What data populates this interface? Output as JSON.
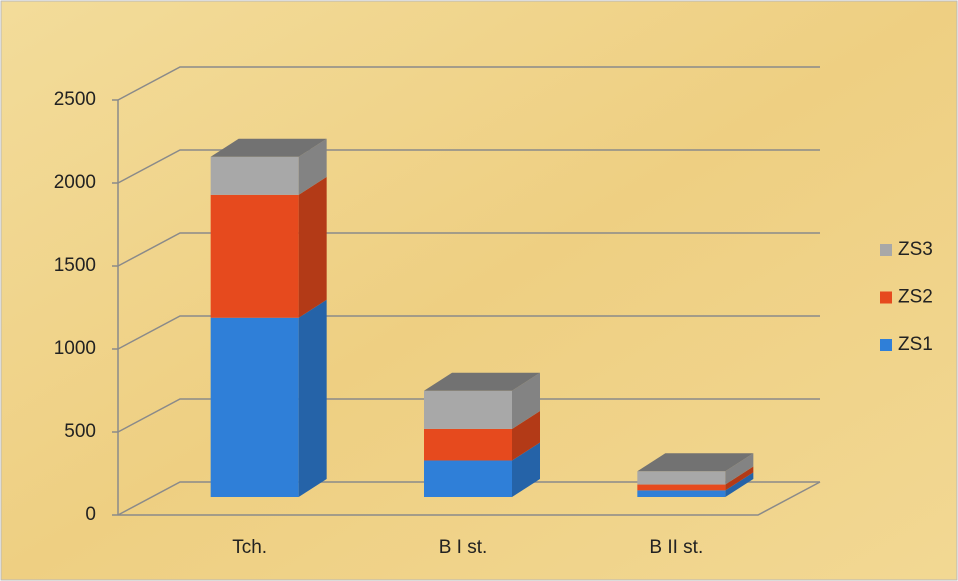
{
  "chart_data": {
    "type": "bar3d_stacked",
    "categories": [
      "Tch.",
      "B I st.",
      "B II st."
    ],
    "series": [
      {
        "name": "ZS1",
        "color": "#2f7fd8",
        "values": [
          1080,
          220,
          40
        ]
      },
      {
        "name": "ZS2",
        "color": "#e64a1e",
        "values": [
          740,
          190,
          35
        ]
      },
      {
        "name": "ZS3",
        "color": "#a8a8a8",
        "values": [
          230,
          230,
          80
        ]
      }
    ],
    "ylim": [
      0,
      2500
    ],
    "yticks": [
      0,
      500,
      1000,
      1500,
      2000,
      2500
    ],
    "grid": true,
    "legend": "right"
  }
}
